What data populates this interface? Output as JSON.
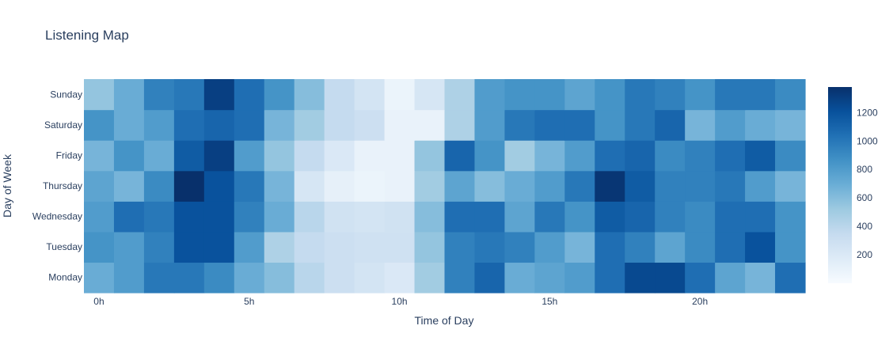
{
  "chart_data": {
    "type": "heatmap",
    "title": "Listening Map",
    "xlabel": "Time of Day",
    "ylabel": "Day of Week",
    "x": [
      0,
      1,
      2,
      3,
      4,
      5,
      6,
      7,
      8,
      9,
      10,
      11,
      12,
      13,
      14,
      15,
      16,
      17,
      18,
      19,
      20,
      21,
      22,
      23
    ],
    "x_tick_values": [
      0,
      5,
      10,
      15,
      20
    ],
    "x_tick_labels": [
      "0h",
      "5h",
      "10h",
      "15h",
      "20h"
    ],
    "y": [
      "Monday",
      "Tuesday",
      "Wednesday",
      "Thursday",
      "Friday",
      "Saturday",
      "Sunday"
    ],
    "z": [
      [
        700,
        800,
        1000,
        1000,
        900,
        700,
        600,
        400,
        300,
        250,
        200,
        500,
        950,
        1100,
        700,
        750,
        800,
        1050,
        1250,
        1250,
        1050,
        750,
        650,
        1050
      ],
      [
        850,
        800,
        950,
        1200,
        1200,
        800,
        450,
        350,
        300,
        280,
        280,
        550,
        950,
        1000,
        950,
        800,
        650,
        1050,
        950,
        750,
        900,
        1050,
        1200,
        850
      ],
      [
        800,
        1050,
        1000,
        1200,
        1200,
        950,
        700,
        400,
        270,
        250,
        270,
        600,
        1050,
        1050,
        750,
        1000,
        850,
        1150,
        1100,
        950,
        900,
        1050,
        1050,
        850
      ],
      [
        750,
        650,
        900,
        1380,
        1200,
        1000,
        650,
        230,
        120,
        80,
        100,
        500,
        750,
        600,
        700,
        800,
        1000,
        1350,
        1150,
        950,
        950,
        1000,
        800,
        650
      ],
      [
        650,
        850,
        700,
        1150,
        1300,
        800,
        550,
        350,
        200,
        100,
        100,
        550,
        1100,
        850,
        500,
        650,
        800,
        1050,
        1100,
        900,
        950,
        1050,
        1150,
        900
      ],
      [
        850,
        700,
        800,
        1050,
        1100,
        1050,
        650,
        500,
        350,
        300,
        100,
        100,
        450,
        800,
        1000,
        1050,
        1050,
        850,
        1000,
        1100,
        650,
        800,
        700,
        650
      ],
      [
        550,
        700,
        950,
        1000,
        1300,
        1050,
        850,
        600,
        350,
        250,
        80,
        230,
        450,
        800,
        850,
        850,
        750,
        850,
        1000,
        950,
        850,
        1000,
        1000,
        900
      ]
    ],
    "zmin": 0,
    "zmax": 1380,
    "colorscale": "Blues",
    "colorbar_tick_values": [
      200,
      400,
      600,
      800,
      1000,
      1200
    ],
    "colorbar_tick_labels": [
      "200",
      "400",
      "600",
      "800",
      "1000",
      "1200"
    ],
    "colors": {
      "low": "#f7fbff",
      "high": "#08306b",
      "text": "#2a3f5f"
    }
  }
}
